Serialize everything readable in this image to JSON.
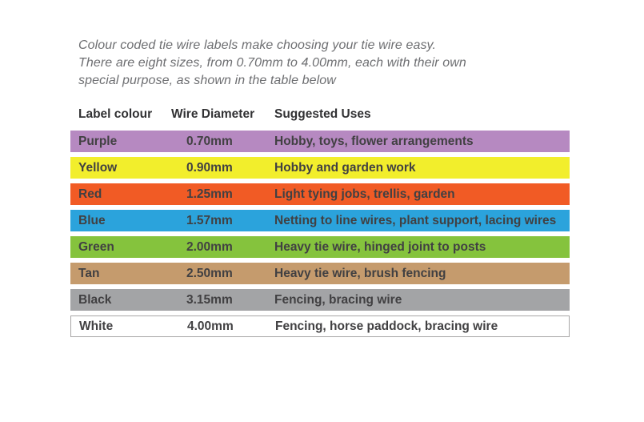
{
  "page": {
    "background_color": "#ffffff"
  },
  "intro": {
    "line1": "Colour coded tie wire labels make choosing your tie wire easy.",
    "line2": "There are eight sizes, from 0.70mm to 4.00mm, each with their own",
    "line3": "special purpose, as shown in the table below",
    "text_color": "#6d6e71"
  },
  "table": {
    "headers": {
      "label_colour": "Label colour",
      "wire_diameter": "Wire Diameter",
      "suggested_uses": "Suggested Uses"
    },
    "header_text_color": "#323234",
    "row_text_color": "#414042",
    "rows": [
      {
        "label_colour": "Purple",
        "wire_diameter": "0.70mm",
        "suggested_uses": "Hobby, toys, flower arrangements",
        "row_color": "#b689c1"
      },
      {
        "label_colour": "Yellow",
        "wire_diameter": "0.90mm",
        "suggested_uses": "Hobby and garden work",
        "row_color": "#f2ee2c"
      },
      {
        "label_colour": "Red",
        "wire_diameter": "1.25mm",
        "suggested_uses": "Light tying jobs, trellis, garden",
        "row_color": "#f15b25"
      },
      {
        "label_colour": "Blue",
        "wire_diameter": "1.57mm",
        "suggested_uses": "Netting to line wires, plant support, lacing wires",
        "row_color": "#2ba3dc"
      },
      {
        "label_colour": "Green",
        "wire_diameter": "2.00mm",
        "suggested_uses": "Heavy tie wire, hinged joint to posts",
        "row_color": "#85c33d"
      },
      {
        "label_colour": "Tan",
        "wire_diameter": "2.50mm",
        "suggested_uses": "Heavy tie wire, brush fencing",
        "row_color": "#c59b6d"
      },
      {
        "label_colour": "Black",
        "wire_diameter": "3.15mm",
        "suggested_uses": "Fencing, bracing wire",
        "row_color": "#a3a4a6"
      },
      {
        "label_colour": "White",
        "wire_diameter": "4.00mm",
        "suggested_uses": "Fencing, horse paddock, bracing wire",
        "row_color": "#ffffff",
        "border_color": "#a7a5a6"
      }
    ]
  }
}
